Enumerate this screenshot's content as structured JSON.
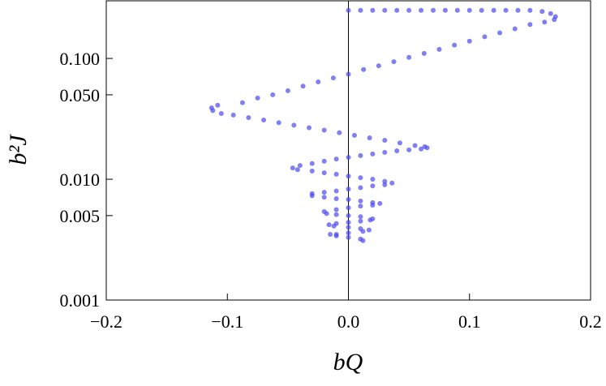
{
  "chart_data": {
    "type": "scatter",
    "log_y": true,
    "color": "#4a4af0",
    "x_label": "bQ",
    "y_label": "b²J",
    "xlim": [
      -0.2,
      0.2
    ],
    "ylim": [
      0.001,
      0.3
    ],
    "xticks": [
      {
        "value": -0.2,
        "label": "−0.2"
      },
      {
        "value": -0.1,
        "label": "−0.1"
      },
      {
        "value": 0,
        "label": "0.0"
      },
      0.1,
      0.2
    ],
    "yticks": [
      0.001,
      0.005,
      {
        "value": 0.01,
        "label": "0.010"
      },
      {
        "value": 0.05,
        "label": "0.050"
      },
      {
        "value": 0.1,
        "label": "0.100"
      }
    ],
    "series": [
      {
        "x": [
          0,
          0.01,
          0.02,
          0.03,
          0.04,
          0.05,
          0.06,
          0.07,
          0.08,
          0.09,
          0.1,
          0.11,
          0.12,
          0.13,
          0.14,
          0.15,
          0.16,
          0.167,
          0.171,
          0.17,
          0.162,
          0.15,
          0.1375,
          0.125,
          0.1125,
          0.1,
          0.0875,
          0.075,
          0.0625,
          0.05,
          0.0375,
          0.025,
          0.0125,
          0,
          -0.0125,
          -0.025,
          -0.0375,
          -0.05,
          -0.0625,
          -0.075,
          -0.0875,
          -0.108,
          -0.113,
          -0.112,
          -0.105,
          -0.095,
          -0.0825,
          -0.07,
          -0.0575,
          -0.045,
          -0.0325,
          -0.02,
          -0.0075,
          0.005,
          0.0175,
          0.03,
          0.0425,
          0.055,
          0.063,
          0.065,
          0.06,
          0.05,
          0.04,
          0.03,
          0.02,
          0.01,
          0,
          -0.01,
          -0.02,
          -0.03,
          -0.04,
          -0.046,
          -0.042,
          -0.03,
          -0.02,
          -0.01,
          0,
          0.01,
          0.02,
          0.03,
          0.036,
          0.03,
          0.02,
          0.01,
          0,
          -0.01,
          -0.02,
          -0.03,
          -0.03,
          -0.02,
          -0.01,
          0,
          0.01,
          0.02,
          0.026,
          0.02,
          0.01,
          0,
          -0.01,
          -0.02,
          -0.018,
          -0.01,
          0,
          0.01,
          0.02,
          0.018,
          0.01,
          0,
          -0.01,
          -0.016,
          -0.012,
          0,
          0.01,
          0.017,
          0.012,
          0,
          -0.01,
          -0.015,
          -0.01,
          0,
          0.01,
          0.012
        ],
        "y": [
          0.25,
          0.25,
          0.25,
          0.25,
          0.25,
          0.25,
          0.25,
          0.25,
          0.25,
          0.25,
          0.25,
          0.25,
          0.25,
          0.25,
          0.25,
          0.25,
          0.245,
          0.235,
          0.222,
          0.21,
          0.2,
          0.191,
          0.176,
          0.163,
          0.151,
          0.139,
          0.129,
          0.119,
          0.11,
          0.102,
          0.094,
          0.087,
          0.081,
          0.074,
          0.069,
          0.064,
          0.059,
          0.054,
          0.05,
          0.047,
          0.043,
          0.041,
          0.039,
          0.037,
          0.035,
          0.034,
          0.0324,
          0.0309,
          0.0294,
          0.028,
          0.0267,
          0.0255,
          0.0243,
          0.0231,
          0.022,
          0.021,
          0.02,
          0.019,
          0.0186,
          0.0182,
          0.0178,
          0.0175,
          0.0172,
          0.0167,
          0.0162,
          0.0157,
          0.0152,
          0.0147,
          0.0141,
          0.0135,
          0.013,
          0.0124,
          0.012,
          0.0117,
          0.0113,
          0.011,
          0.0106,
          0.0103,
          0.01,
          0.0096,
          0.0093,
          0.009,
          0.0088,
          0.0085,
          0.0083,
          0.008,
          0.0078,
          0.0076,
          0.0073,
          0.0071,
          0.0069,
          0.0068,
          0.0066,
          0.0064,
          0.0063,
          0.0061,
          0.006,
          0.0058,
          0.0056,
          0.0054,
          0.0052,
          0.0051,
          0.005,
          0.0049,
          0.0047,
          0.0046,
          0.0045,
          0.0044,
          0.0043,
          0.0042,
          0.0041,
          0.004,
          0.0039,
          0.0038,
          0.0037,
          0.0036,
          0.0035,
          0.0035,
          0.0034,
          0.0033,
          0.0032,
          0.0031
        ]
      }
    ]
  }
}
